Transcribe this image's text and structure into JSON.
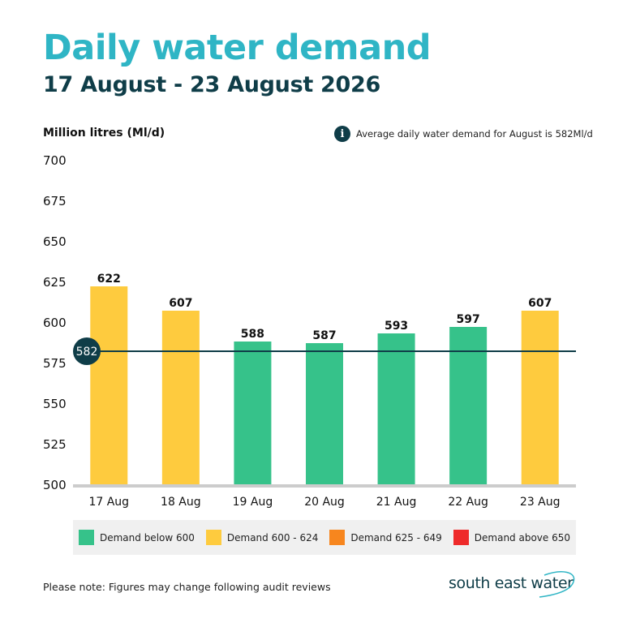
{
  "title": "Daily water demand",
  "subtitle": "17 August - 23 August 2026",
  "unit_label": "Million litres (Ml/d)",
  "info": {
    "icon": "info-icon",
    "glyph": "i",
    "text": "Average daily water demand for August is 582Ml/d"
  },
  "note": "Please note: Figures may change following audit reviews",
  "logo": {
    "text": "south east water"
  },
  "colors": {
    "title": "#2fb5c5",
    "dark": "#0f3d48",
    "below_600": "#36c28a",
    "600_624": "#fecb3e",
    "625_649": "#f7861e",
    "above_650": "#ee2a2a",
    "axis": "#cccccc"
  },
  "legend": [
    {
      "label": "Demand below 600",
      "color": "#36c28a"
    },
    {
      "label": "Demand 600 - 624",
      "color": "#fecb3e"
    },
    {
      "label": "Demand 625 - 649",
      "color": "#f7861e"
    },
    {
      "label": "Demand above 650",
      "color": "#ee2a2a"
    }
  ],
  "chart_data": {
    "type": "bar",
    "categories": [
      "17 Aug",
      "18 Aug",
      "19 Aug",
      "20 Aug",
      "21 Aug",
      "22 Aug",
      "23 Aug"
    ],
    "values": [
      622,
      607,
      588,
      587,
      593,
      597,
      607
    ],
    "bar_colors": [
      "#fecb3e",
      "#fecb3e",
      "#36c28a",
      "#36c28a",
      "#36c28a",
      "#36c28a",
      "#fecb3e"
    ],
    "ylim": [
      500,
      700
    ],
    "yticks": [
      500,
      525,
      550,
      575,
      600,
      625,
      650,
      675,
      700
    ],
    "average": {
      "value": 582,
      "label": "582"
    },
    "grid": false
  }
}
